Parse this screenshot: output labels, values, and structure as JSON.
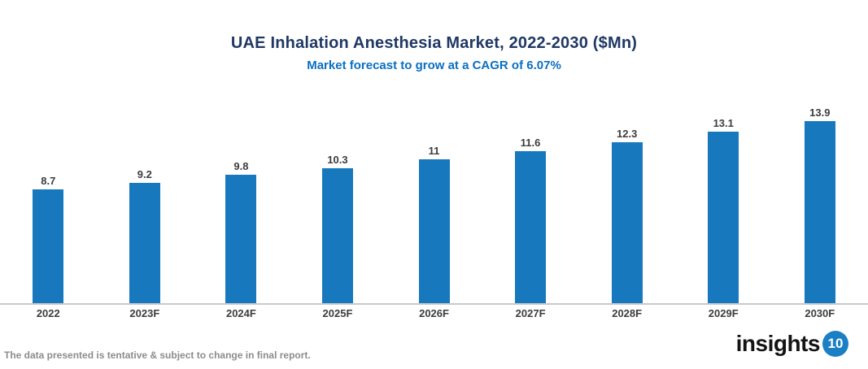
{
  "header": {
    "title": "UAE Inhalation Anesthesia Market, 2022-2030 ($Mn)",
    "subtitle": "Market forecast to grow at a CAGR of 6.07%"
  },
  "chart_data": {
    "type": "bar",
    "categories": [
      "2022",
      "2023F",
      "2024F",
      "2025F",
      "2026F",
      "2027F",
      "2028F",
      "2029F",
      "2030F"
    ],
    "values": [
      8.7,
      9.2,
      9.8,
      10.3,
      11,
      11.6,
      12.3,
      13.1,
      13.9
    ],
    "title": "UAE Inhalation Anesthesia Market, 2022-2030 ($Mn)",
    "subtitle": "Market forecast to grow at a CAGR of 6.07%",
    "xlabel": "",
    "ylabel": "",
    "ylim": [
      0,
      15
    ],
    "grid": false,
    "legend_position": "none",
    "value_labels_shown": true,
    "bar_color": "#1778be"
  },
  "footer": {
    "disclaimer": "The data presented is tentative & subject to change in final report.",
    "logo_word": "insights",
    "logo_badge": "10"
  },
  "colors": {
    "title_text": "#1f3864",
    "subtitle_text": "#0a6fc2",
    "bar": "#1778be",
    "value_label_text": "#3d3d3d",
    "category_label_text": "#3d3d3d",
    "axis_line": "#c9c9c9",
    "disclaimer_text": "#8c8c8c",
    "logo_badge_bg": "#1b7fc6"
  }
}
